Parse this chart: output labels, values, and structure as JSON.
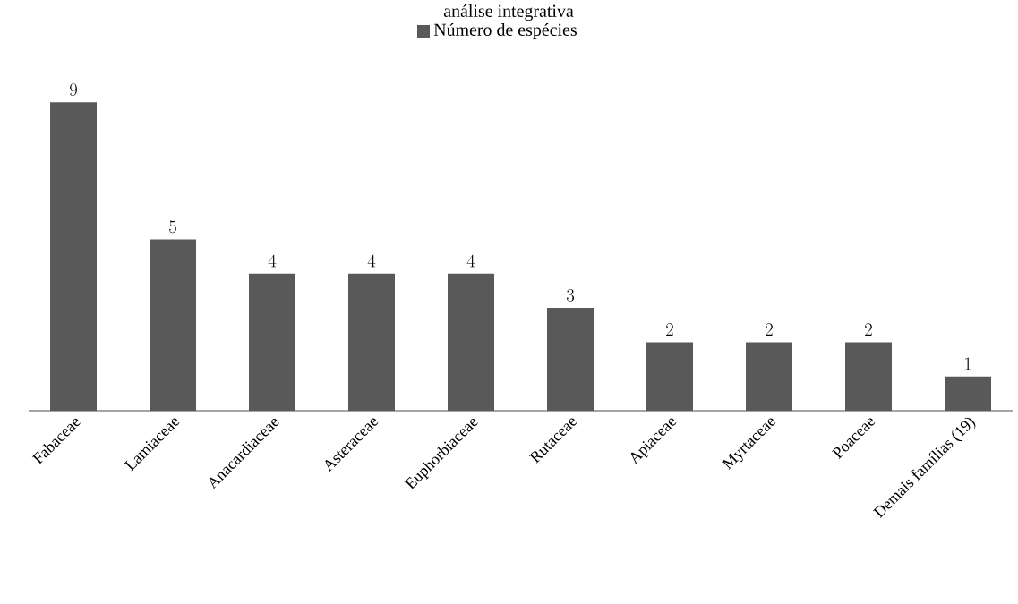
{
  "chart_data": {
    "type": "bar",
    "title": "análise integrativa",
    "categories": [
      "Fabaceae",
      "Lamiaceae",
      "Anacardiaceae",
      "Asteraceae",
      "Euphorbiaceae",
      "Rutaceae",
      "Apiaceae",
      "Myrtaceae",
      "Poaceae",
      "Demais famílias (19)"
    ],
    "series": [
      {
        "name": "Número de espécies",
        "color": "#595959",
        "values": [
          9,
          5,
          4,
          4,
          4,
          3,
          2,
          2,
          2,
          1
        ]
      }
    ],
    "data_labels": true,
    "legend": "top"
  }
}
